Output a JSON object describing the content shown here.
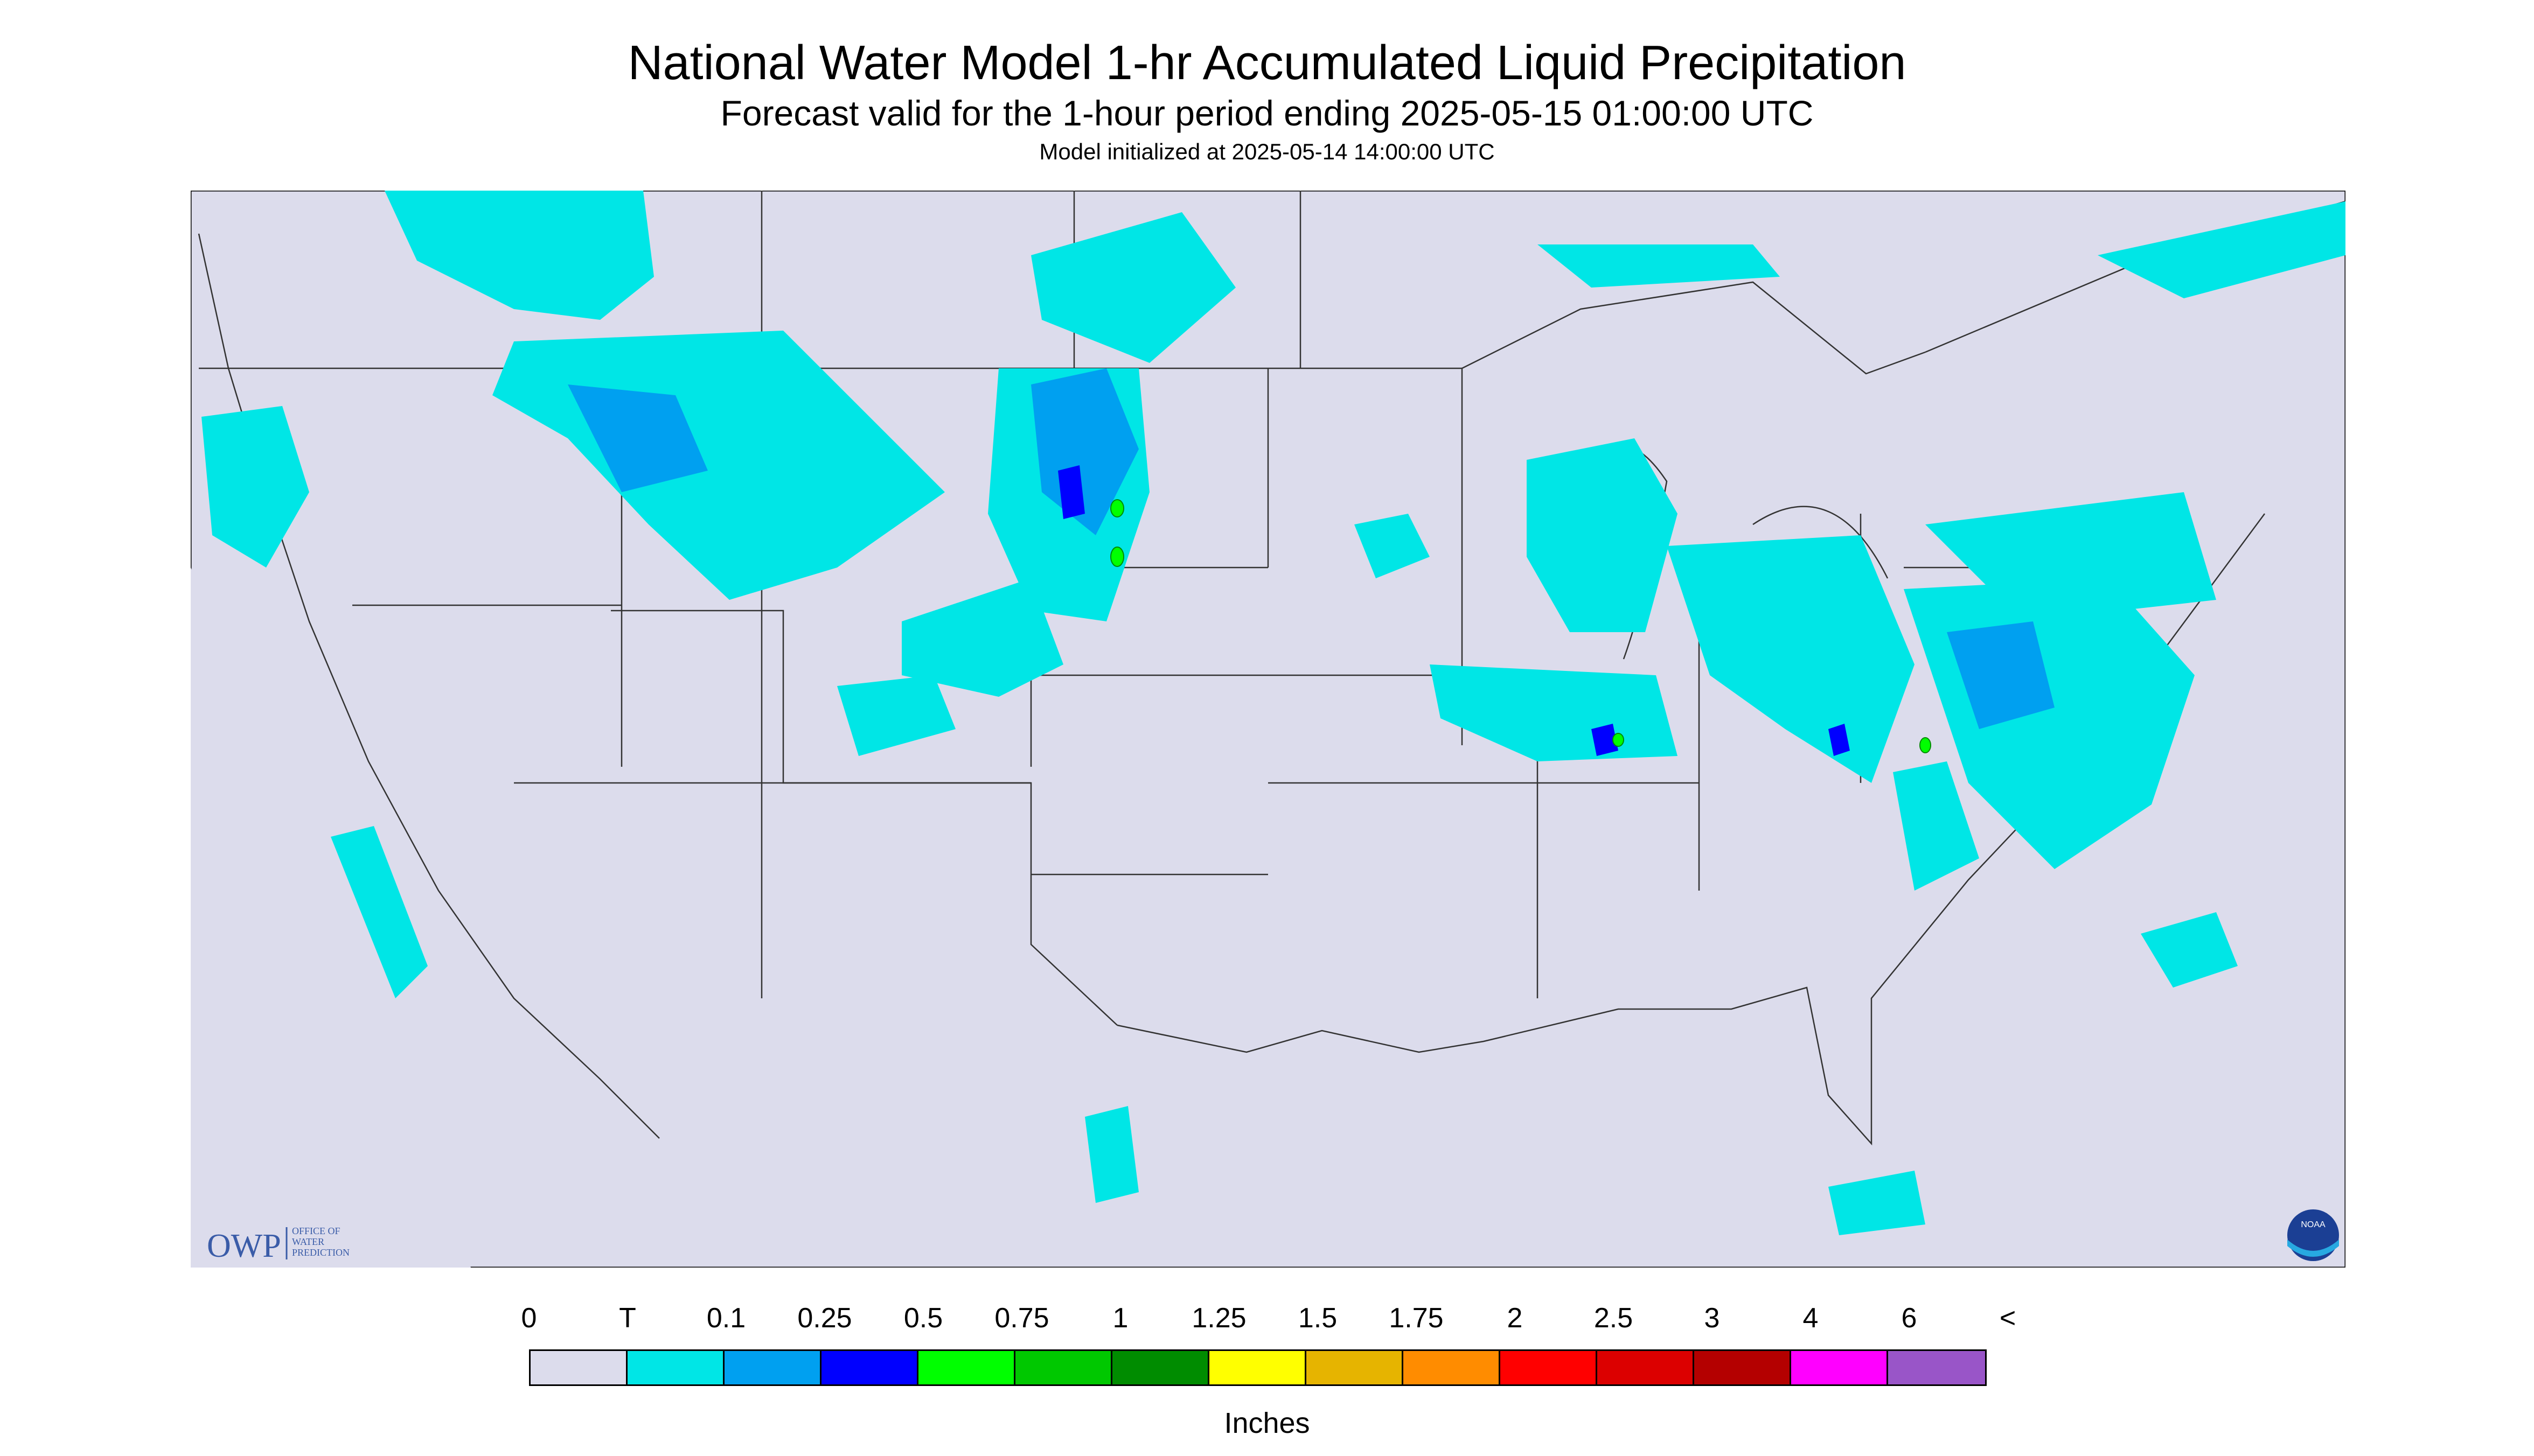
{
  "header": {
    "title": "National Water Model 1-hr Accumulated Liquid Precipitation",
    "subtitle": "Forecast valid for the 1-hour period ending 2025-05-15 01:00:00 UTC",
    "init": "Model initialized at 2025-05-14 14:00:00 UTC"
  },
  "logo": {
    "owp_mark": "OWP",
    "owp_text": [
      "OFFICE OF",
      "WATER",
      "PREDICTION"
    ],
    "noaa_text": "NOAA"
  },
  "colors": {
    "background": "#dcdcec",
    "trace": "#00e6e6",
    "light": "#00a0f0",
    "moderate": "#0000ff",
    "heavy": "#00ff00"
  },
  "legend": {
    "tick_labels": [
      "0",
      "T",
      "0.1",
      "0.25",
      "0.5",
      "0.75",
      "1",
      "1.25",
      "1.5",
      "1.75",
      "2",
      "2.5",
      "3",
      "4",
      "6",
      "<"
    ],
    "colors": [
      "#dcdcec",
      "#00e6e6",
      "#00a0f0",
      "#0000ff",
      "#00ff00",
      "#00c800",
      "#008c00",
      "#ffff00",
      "#e6b400",
      "#ff8c00",
      "#ff0000",
      "#dc0000",
      "#b40000",
      "#ff00ff",
      "#9955c8"
    ],
    "units": "Inches"
  }
}
